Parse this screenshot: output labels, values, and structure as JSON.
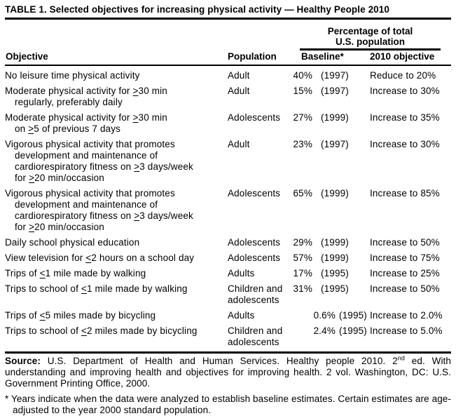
{
  "title": "TABLE 1. Selected objectives for increasing physical activity — Healthy People 2010",
  "table": {
    "spanner_line1": "Percentage of total",
    "spanner_line2": "U.S. population",
    "columns": {
      "objective": "Objective",
      "population": "Population",
      "baseline": "Baseline*",
      "target": "2010 objective"
    },
    "rows": [
      {
        "objective": "No leisure time physical activity",
        "population": "Adult",
        "baseline_value": "40%",
        "baseline_year": "(1997)",
        "target": "Reduce to 20%",
        "baseline_wide": false
      },
      {
        "objective": "Moderate physical activity for ≥30 min\nregularly, preferably daily",
        "population": "Adult",
        "baseline_value": "15%",
        "baseline_year": "(1997)",
        "target": "Increase to 30%",
        "baseline_wide": false
      },
      {
        "objective": "Moderate physical activity for ≥30 min\non ≥5 of previous 7 days",
        "population": "Adolescents",
        "baseline_value": "27%",
        "baseline_year": "(1999)",
        "target": "Increase to 35%",
        "baseline_wide": false
      },
      {
        "objective": "Vigorous physical activity that promotes\ndevelopment and maintenance of\ncardiorespiratory fitness on ≥3 days/week\nfor ≥20 min/occasion",
        "population": "Adult",
        "baseline_value": "23%",
        "baseline_year": "(1997)",
        "target": "Increase to 30%",
        "baseline_wide": false
      },
      {
        "objective": "Vigorous physical activity that promotes\ndevelopment and maintenance of\ncardiorespiratory fitness on ≥3 days/week\nfor ≥20 min/occasion",
        "population": "Adolescents",
        "baseline_value": "65%",
        "baseline_year": "(1999)",
        "target": "Increase to 85%",
        "baseline_wide": false
      },
      {
        "objective": "Daily school physical education",
        "population": "Adolescents",
        "baseline_value": "29%",
        "baseline_year": "(1999)",
        "target": "Increase to 50%",
        "baseline_wide": false
      },
      {
        "objective": "View television for ≤2 hours on a school day",
        "population": "Adolescents",
        "baseline_value": "57%",
        "baseline_year": "(1999)",
        "target": "Increase to 75%",
        "baseline_wide": false
      },
      {
        "objective": "Trips of ≤1 mile made by walking",
        "population": "Adults",
        "baseline_value": "17%",
        "baseline_year": "(1995)",
        "target": "Increase to 25%",
        "baseline_wide": false
      },
      {
        "objective": "Trips to school of ≤1 mile made by walking",
        "population": "Children and adolescents",
        "baseline_value": "31%",
        "baseline_year": "(1995)",
        "target": "Increase to 50%",
        "baseline_wide": false
      },
      {
        "objective": "Trips of ≤5 miles made by bicycling",
        "population": "Adults",
        "baseline_value": "0.6%",
        "baseline_year": "(1995)",
        "target": "Increase to 2.0%",
        "baseline_wide": true
      },
      {
        "objective": "Trips to school of ≤2 miles made by bicycling",
        "population": "Children and adolescents",
        "baseline_value": "2.4%",
        "baseline_year": "(1995)",
        "target": "Increase to 5.0%",
        "baseline_wide": true
      }
    ]
  },
  "footer": {
    "source_label": "Source:",
    "source_part1": " U.S. Department of Health and Human Services. Healthy people 2010. 2",
    "source_sup": "nd",
    "source_part2": " ed. With understanding and improving health and objectives for improving health. 2 vol. Washington, DC: U.S. Government Printing Office, 2000.",
    "footnote": "* Years indicate when the data were analyzed to establish baseline estimates. Certain estimates are age-adjusted to the year 2000 standard population."
  }
}
